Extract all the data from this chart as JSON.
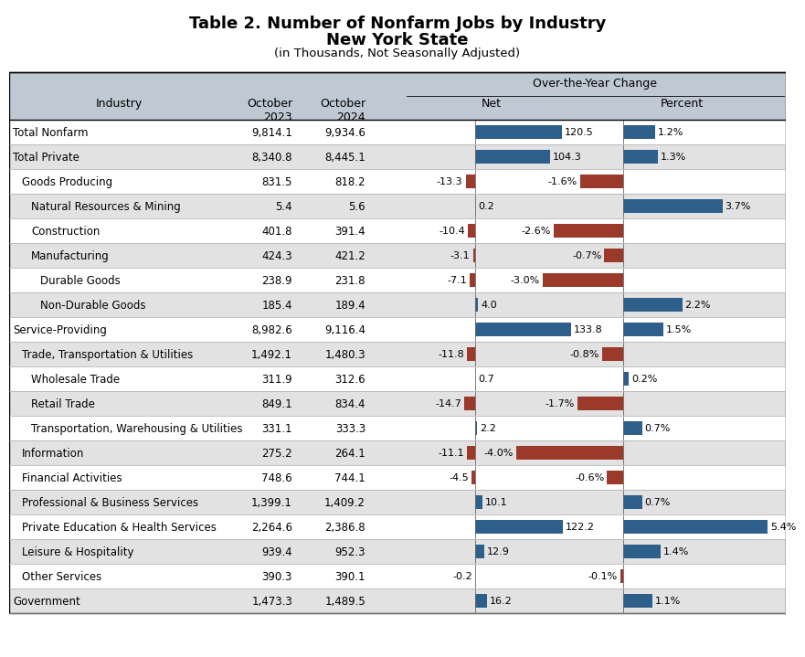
{
  "title_line1": "Table 2. Number of Nonfarm Jobs by Industry",
  "title_line2": "New York State",
  "title_line3": "(in Thousands, Not Seasonally Adjusted)",
  "rows": [
    {
      "industry": "Total Nonfarm",
      "indent": 0,
      "oct2023": "9,814.1",
      "oct2024": "9,934.6",
      "net": 120.5,
      "net_str": "120.5",
      "pct": 1.2,
      "pct_str": "1.2%",
      "bold": false,
      "bg": "white"
    },
    {
      "industry": "Total Private",
      "indent": 1,
      "oct2023": "8,340.8",
      "oct2024": "8,445.1",
      "net": 104.3,
      "net_str": "104.3",
      "pct": 1.3,
      "pct_str": "1.3%",
      "bold": false,
      "bg": "gray"
    },
    {
      "industry": "Goods Producing",
      "indent": 2,
      "oct2023": "831.5",
      "oct2024": "818.2",
      "net": -13.3,
      "net_str": "-13.3",
      "pct": -1.6,
      "pct_str": "-1.6%",
      "bold": false,
      "bg": "white"
    },
    {
      "industry": "Natural Resources & Mining",
      "indent": 3,
      "oct2023": "5.4",
      "oct2024": "5.6",
      "net": 0.2,
      "net_str": "0.2",
      "pct": 3.7,
      "pct_str": "3.7%",
      "bold": false,
      "bg": "gray"
    },
    {
      "industry": "Construction",
      "indent": 3,
      "oct2023": "401.8",
      "oct2024": "391.4",
      "net": -10.4,
      "net_str": "-10.4",
      "pct": -2.6,
      "pct_str": "-2.6%",
      "bold": false,
      "bg": "white"
    },
    {
      "industry": "Manufacturing",
      "indent": 3,
      "oct2023": "424.3",
      "oct2024": "421.2",
      "net": -3.1,
      "net_str": "-3.1",
      "pct": -0.7,
      "pct_str": "-0.7%",
      "bold": false,
      "bg": "gray"
    },
    {
      "industry": "Durable Goods",
      "indent": 4,
      "oct2023": "238.9",
      "oct2024": "231.8",
      "net": -7.1,
      "net_str": "-7.1",
      "pct": -3.0,
      "pct_str": "-3.0%",
      "bold": false,
      "bg": "white"
    },
    {
      "industry": "Non-Durable Goods",
      "indent": 4,
      "oct2023": "185.4",
      "oct2024": "189.4",
      "net": 4.0,
      "net_str": "4.0",
      "pct": 2.2,
      "pct_str": "2.2%",
      "bold": false,
      "bg": "gray"
    },
    {
      "industry": "Service-Providing",
      "indent": 1,
      "oct2023": "8,982.6",
      "oct2024": "9,116.4",
      "net": 133.8,
      "net_str": "133.8",
      "pct": 1.5,
      "pct_str": "1.5%",
      "bold": false,
      "bg": "white"
    },
    {
      "industry": "Trade, Transportation & Utilities",
      "indent": 2,
      "oct2023": "1,492.1",
      "oct2024": "1,480.3",
      "net": -11.8,
      "net_str": "-11.8",
      "pct": -0.8,
      "pct_str": "-0.8%",
      "bold": false,
      "bg": "gray"
    },
    {
      "industry": "Wholesale Trade",
      "indent": 3,
      "oct2023": "311.9",
      "oct2024": "312.6",
      "net": 0.7,
      "net_str": "0.7",
      "pct": 0.2,
      "pct_str": "0.2%",
      "bold": false,
      "bg": "white"
    },
    {
      "industry": "Retail Trade",
      "indent": 3,
      "oct2023": "849.1",
      "oct2024": "834.4",
      "net": -14.7,
      "net_str": "-14.7",
      "pct": -1.7,
      "pct_str": "-1.7%",
      "bold": false,
      "bg": "gray"
    },
    {
      "industry": "Transportation, Warehousing & Utilities",
      "indent": 3,
      "oct2023": "331.1",
      "oct2024": "333.3",
      "net": 2.2,
      "net_str": "2.2",
      "pct": 0.7,
      "pct_str": "0.7%",
      "bold": false,
      "bg": "white"
    },
    {
      "industry": "Information",
      "indent": 2,
      "oct2023": "275.2",
      "oct2024": "264.1",
      "net": -11.1,
      "net_str": "-11.1",
      "pct": -4.0,
      "pct_str": "-4.0%",
      "bold": false,
      "bg": "gray"
    },
    {
      "industry": "Financial Activities",
      "indent": 2,
      "oct2023": "748.6",
      "oct2024": "744.1",
      "net": -4.5,
      "net_str": "-4.5",
      "pct": -0.6,
      "pct_str": "-0.6%",
      "bold": false,
      "bg": "white"
    },
    {
      "industry": "Professional & Business Services",
      "indent": 2,
      "oct2023": "1,399.1",
      "oct2024": "1,409.2",
      "net": 10.1,
      "net_str": "10.1",
      "pct": 0.7,
      "pct_str": "0.7%",
      "bold": false,
      "bg": "gray"
    },
    {
      "industry": "Private Education & Health Services",
      "indent": 2,
      "oct2023": "2,264.6",
      "oct2024": "2,386.8",
      "net": 122.2,
      "net_str": "122.2",
      "pct": 5.4,
      "pct_str": "5.4%",
      "bold": false,
      "bg": "white"
    },
    {
      "industry": "Leisure & Hospitality",
      "indent": 2,
      "oct2023": "939.4",
      "oct2024": "952.3",
      "net": 12.9,
      "net_str": "12.9",
      "pct": 1.4,
      "pct_str": "1.4%",
      "bold": false,
      "bg": "gray"
    },
    {
      "industry": "Other Services",
      "indent": 2,
      "oct2023": "390.3",
      "oct2024": "390.1",
      "net": -0.2,
      "net_str": "-0.2",
      "pct": -0.1,
      "pct_str": "-0.1%",
      "bold": false,
      "bg": "white"
    },
    {
      "industry": "Government",
      "indent": 0,
      "oct2023": "1,473.3",
      "oct2024": "1,489.5",
      "net": 16.2,
      "net_str": "16.2",
      "pct": 1.1,
      "pct_str": "1.1%",
      "bold": false,
      "bg": "gray"
    }
  ],
  "blue_color": "#2E5F8A",
  "red_color": "#9B3A2A",
  "header_bg": "#BFC9D4",
  "light_gray": "#E2E2E2",
  "white": "#FFFFFF",
  "net_scale": 140,
  "pct_scale": 6.0
}
